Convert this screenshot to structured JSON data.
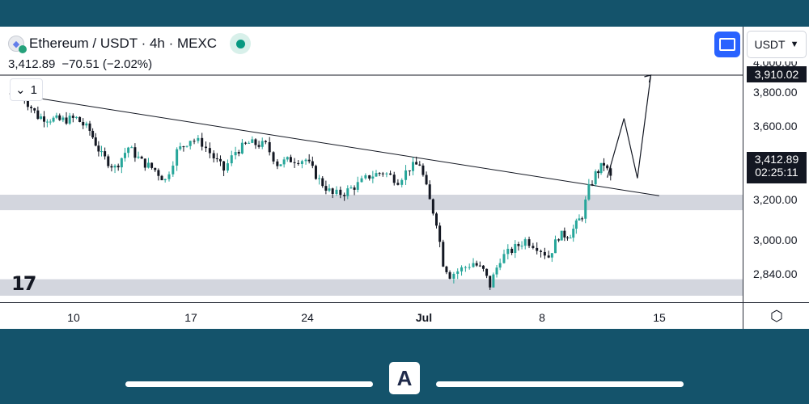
{
  "header": {
    "symbol_title": "Ethereum / USDT · 4h · MEXC",
    "last_price": "3,412.89",
    "change": "−70.51 (−2.02%)",
    "indicator_count": "1"
  },
  "toolbar": {
    "currency_label": "USDT",
    "fullscreen_icon": "fullscreen-icon",
    "settings_icon": "settings-hex-icon"
  },
  "price_axis": {
    "ticks": [
      "4,000.00",
      "3,800.00",
      "3,600.00",
      "3,200.00",
      "3,000.00",
      "2,840.00"
    ],
    "target_tag": "3,910.02",
    "current_price_tag": "3,412.89",
    "countdown": "02:25:11"
  },
  "time_axis": {
    "ticks": [
      "10",
      "17",
      "24",
      "Jul",
      "8",
      "15"
    ]
  },
  "branding": {
    "tv_logo": "17",
    "app_logo": "A"
  },
  "colors": {
    "up": "#26a69a",
    "down": "#131722",
    "zone": "#d1d4dc",
    "accent": "#2962ff",
    "frame": "#14536b"
  },
  "chart_data": {
    "type": "candlestick",
    "instrument": "Ethereum / USDT",
    "timeframe": "4h",
    "exchange": "MEXC",
    "x_ticks": [
      "10",
      "17",
      "24",
      "Jul",
      "8",
      "15"
    ],
    "ylim": [
      2780,
      4020
    ],
    "support_zones": [
      [
        3255,
        3330
      ],
      [
        2840,
        2920
      ]
    ],
    "trendline": [
      [
        -0.5,
        3820
      ],
      [
        38.3,
        3325
      ]
    ],
    "target_level": 3910.02,
    "current_price": 3412.89,
    "projected_path": [
      [
        35.2,
        3412.89
      ],
      [
        36.2,
        3700
      ],
      [
        37.0,
        3410
      ],
      [
        37.8,
        3910.02
      ]
    ],
    "close_path": [
      [
        0,
        3840
      ],
      [
        1.2,
        3710
      ],
      [
        2.5,
        3690
      ],
      [
        3.5,
        3700
      ],
      [
        4.3,
        3640
      ],
      [
        5.0,
        3520
      ],
      [
        5.8,
        3460
      ],
      [
        6.6,
        3560
      ],
      [
        7.4,
        3490
      ],
      [
        8.2,
        3450
      ],
      [
        8.8,
        3400
      ],
      [
        9.5,
        3540
      ],
      [
        10.3,
        3600
      ],
      [
        11.0,
        3580
      ],
      [
        11.7,
        3510
      ],
      [
        12.3,
        3450
      ],
      [
        13.0,
        3540
      ],
      [
        13.8,
        3580
      ],
      [
        14.8,
        3570
      ],
      [
        15.5,
        3480
      ],
      [
        16.3,
        3500
      ],
      [
        17.2,
        3500
      ],
      [
        18.0,
        3400
      ],
      [
        18.8,
        3330
      ],
      [
        19.5,
        3340
      ],
      [
        20.3,
        3380
      ],
      [
        21.0,
        3420
      ],
      [
        21.8,
        3440
      ],
      [
        22.7,
        3400
      ],
      [
        23.4,
        3460
      ],
      [
        24.0,
        3480
      ],
      [
        24.6,
        3300
      ],
      [
        25.0,
        3200
      ],
      [
        25.4,
        3000
      ],
      [
        25.8,
        2940
      ],
      [
        26.5,
        2970
      ],
      [
        27.2,
        3000
      ],
      [
        27.8,
        2960
      ],
      [
        28.2,
        2890
      ],
      [
        28.8,
        3020
      ],
      [
        29.5,
        3060
      ],
      [
        30.3,
        3110
      ],
      [
        31.0,
        3080
      ],
      [
        31.7,
        3030
      ],
      [
        32.3,
        3130
      ],
      [
        33.0,
        3140
      ],
      [
        33.7,
        3230
      ],
      [
        34.1,
        3360
      ],
      [
        34.5,
        3430
      ],
      [
        35.0,
        3480
      ],
      [
        35.4,
        3412.89
      ]
    ]
  }
}
